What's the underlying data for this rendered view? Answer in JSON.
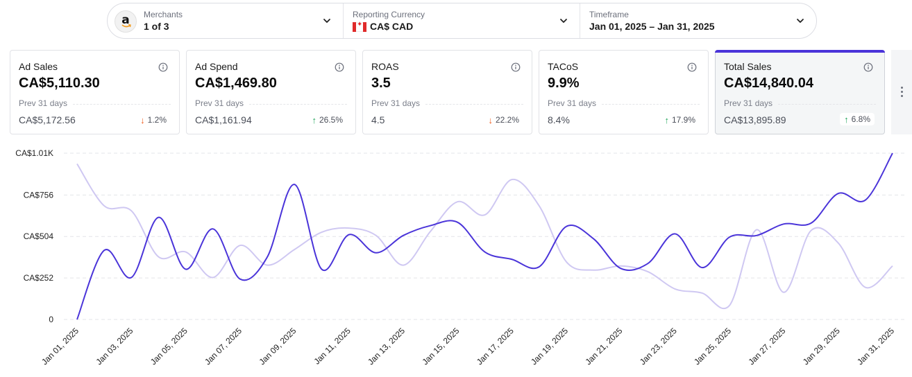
{
  "filters": {
    "merchants": {
      "label": "Merchants",
      "value": "1 of 3",
      "logo_letter": "a"
    },
    "currency": {
      "label": "Reporting Currency",
      "value": "CA$ CAD"
    },
    "timeframe": {
      "label": "Timeframe",
      "value": "Jan 01, 2025 – Jan 31, 2025"
    }
  },
  "kpis": [
    {
      "title": "Ad Sales",
      "value": "CA$5,110.30",
      "prev_label": "Prev 31 days",
      "prev_value": "CA$5,172.56",
      "change": "1.2%",
      "direction": "down"
    },
    {
      "title": "Ad Spend",
      "value": "CA$1,469.80",
      "prev_label": "Prev 31 days",
      "prev_value": "CA$1,161.94",
      "change": "26.5%",
      "direction": "up"
    },
    {
      "title": "ROAS",
      "value": "3.5",
      "prev_label": "Prev 31 days",
      "prev_value": "4.5",
      "change": "22.2%",
      "direction": "down"
    },
    {
      "title": "TACoS",
      "value": "9.9%",
      "prev_label": "Prev 31 days",
      "prev_value": "8.4%",
      "change": "17.9%",
      "direction": "up"
    },
    {
      "title": "Total Sales",
      "value": "CA$14,840.04",
      "prev_label": "Prev 31 days",
      "prev_value": "CA$13,895.89",
      "change": "6.8%",
      "direction": "up"
    }
  ],
  "colors": {
    "accent": "#4a34d9",
    "current_line": "#4a34d9",
    "previous_line": "#cfc8f2",
    "down": "#f05a1a",
    "up": "#22a55b"
  },
  "chart_data": {
    "type": "line",
    "ylim": [
      0,
      1010
    ],
    "yticks": [
      0,
      252,
      504,
      756,
      1010
    ],
    "ytick_labels": [
      "0",
      "CA$252",
      "CA$504",
      "CA$756",
      "CA$1.01K"
    ],
    "x": [
      "Jan 01, 2025",
      "Jan 02, 2025",
      "Jan 03, 2025",
      "Jan 04, 2025",
      "Jan 05, 2025",
      "Jan 06, 2025",
      "Jan 07, 2025",
      "Jan 08, 2025",
      "Jan 09, 2025",
      "Jan 10, 2025",
      "Jan 11, 2025",
      "Jan 12, 2025",
      "Jan 13, 2025",
      "Jan 14, 2025",
      "Jan 15, 2025",
      "Jan 16, 2025",
      "Jan 17, 2025",
      "Jan 18, 2025",
      "Jan 19, 2025",
      "Jan 20, 2025",
      "Jan 21, 2025",
      "Jan 22, 2025",
      "Jan 23, 2025",
      "Jan 24, 2025",
      "Jan 25, 2025",
      "Jan 26, 2025",
      "Jan 27, 2025",
      "Jan 28, 2025",
      "Jan 29, 2025",
      "Jan 30, 2025",
      "Jan 31, 2025"
    ],
    "xtick_labels": [
      "Jan 01, 2025",
      "Jan 03, 2025",
      "Jan 05, 2025",
      "Jan 07, 2025",
      "Jan 09, 2025",
      "Jan 11, 2025",
      "Jan 13, 2025",
      "Jan 15, 2025",
      "Jan 17, 2025",
      "Jan 19, 2025",
      "Jan 21, 2025",
      "Jan 23, 2025",
      "Jan 25, 2025",
      "Jan 27, 2025",
      "Jan 29, 2025",
      "Jan 31, 2025"
    ],
    "series": [
      {
        "name": "Total Sales",
        "values": [
          0,
          420,
          255,
          620,
          305,
          550,
          245,
          380,
          820,
          305,
          515,
          405,
          510,
          570,
          590,
          410,
          365,
          320,
          565,
          490,
          310,
          340,
          520,
          315,
          500,
          510,
          580,
          585,
          765,
          725,
          1010
        ]
      },
      {
        "name": "Total Sales (Prev 31 days)",
        "values": [
          945,
          690,
          660,
          380,
          410,
          255,
          450,
          330,
          425,
          530,
          555,
          510,
          330,
          535,
          715,
          635,
          850,
          690,
          350,
          300,
          325,
          290,
          185,
          160,
          85,
          545,
          165,
          540,
          465,
          195,
          325
        ]
      }
    ]
  }
}
